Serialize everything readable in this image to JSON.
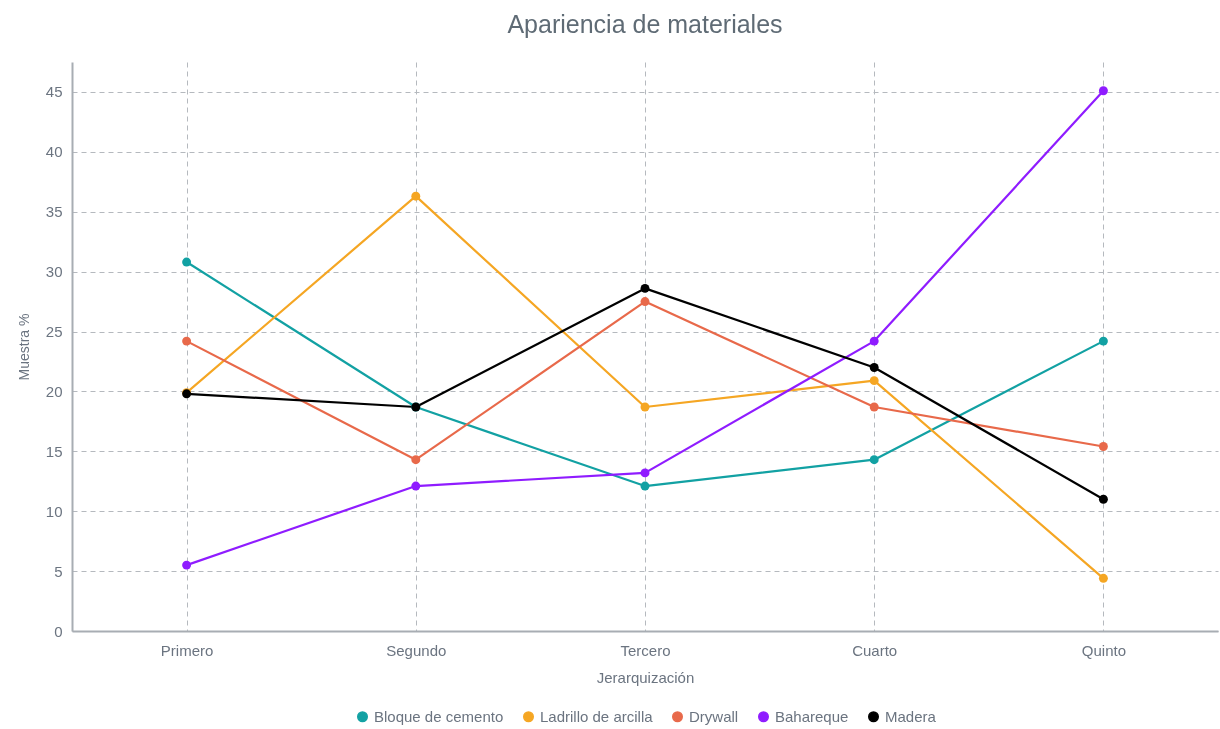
{
  "chart_data": {
    "type": "line",
    "title": "Apariencia de materiales",
    "xlabel": "Jerarquización",
    "ylabel": "Muestra %",
    "categories": [
      "Primero",
      "Segundo",
      "Tercero",
      "Cuarto",
      "Quinto"
    ],
    "series": [
      {
        "name": "Bloque de cemento",
        "color": "#12a1a3",
        "values": [
          30.8,
          18.7,
          12.1,
          14.3,
          24.2
        ]
      },
      {
        "name": "Ladrillo de arcilla",
        "color": "#f5a623",
        "values": [
          19.9,
          36.3,
          18.7,
          20.9,
          4.4
        ]
      },
      {
        "name": "Drywall",
        "color": "#e8694a",
        "values": [
          24.2,
          14.3,
          27.5,
          18.7,
          15.4
        ]
      },
      {
        "name": "Bahareque",
        "color": "#8f1cff",
        "values": [
          5.5,
          12.1,
          13.2,
          24.2,
          45.1
        ]
      },
      {
        "name": "Madera",
        "color": "#000000",
        "values": [
          19.8,
          18.7,
          28.6,
          22.0,
          11.0
        ]
      }
    ],
    "ylim": [
      0,
      47.5
    ],
    "yticks": [
      0,
      5,
      10,
      15,
      20,
      25,
      30,
      35,
      40,
      45
    ],
    "grid": true,
    "legend": "bottom",
    "marker": "circle"
  }
}
